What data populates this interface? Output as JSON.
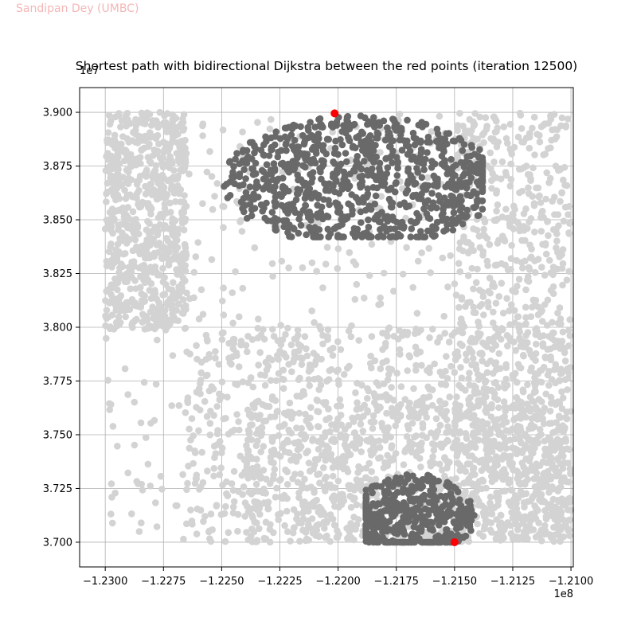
{
  "watermark": "Sandipan Dey (UMBC)",
  "chart_data": {
    "type": "scatter",
    "title": "Shortest path with bidirectional Dijkstra between the red points (iteration 12500)",
    "xlabel": "",
    "ylabel": "",
    "x_offset_label": "1e8",
    "y_offset_label": "1e7",
    "xlim": [
      -1.2311,
      -1.2099
    ],
    "ylim": [
      3.6885,
      3.9115
    ],
    "x_ticks": [
      -1.23,
      -1.2275,
      -1.225,
      -1.2225,
      -1.22,
      -1.2175,
      -1.215,
      -1.2125,
      -1.21
    ],
    "x_tick_labels": [
      "−1.2300",
      "−1.2275",
      "−1.2250",
      "−1.2225",
      "−1.2200",
      "−1.2175",
      "−1.2150",
      "−1.2125",
      "−1.2100"
    ],
    "y_ticks": [
      3.7,
      3.725,
      3.75,
      3.775,
      3.8,
      3.825,
      3.85,
      3.875,
      3.9
    ],
    "y_tick_labels": [
      "3.700",
      "3.725",
      "3.750",
      "3.775",
      "3.800",
      "3.825",
      "3.850",
      "3.875",
      "3.900"
    ],
    "grid": true,
    "colors": {
      "network": "#d3d3d3",
      "explored": "#696969",
      "endpoints": "#ff0000",
      "grid": "#b0b0b0"
    },
    "series": [
      {
        "role": "road-network-nodes",
        "color": "#d3d3d3",
        "regions": [
          {
            "x": [
              -1.23,
              -1.21
            ],
            "y": [
              3.7,
              3.9
            ],
            "density": "sparse"
          },
          {
            "x": [
              -1.23,
              -1.2265
            ],
            "y": [
              3.799,
              3.9
            ],
            "density": "dense"
          },
          {
            "x": [
              -1.2265,
              -1.21
            ],
            "y": [
              3.7,
              3.8
            ],
            "density": "dense"
          },
          {
            "x": [
              -1.224,
              -1.21
            ],
            "y": [
              3.7,
              3.765
            ],
            "density": "dense"
          },
          {
            "x": [
              -1.215,
              -1.21
            ],
            "y": [
              3.7,
              3.9
            ],
            "density": "dense"
          }
        ]
      },
      {
        "role": "explored-nodes-forward",
        "color": "#696969",
        "center": [
          -1.219,
          3.868
        ],
        "extent_x": [
          -1.2253,
          -1.2138
        ],
        "extent_y": [
          3.842,
          3.9
        ]
      },
      {
        "role": "explored-nodes-backward",
        "color": "#696969",
        "center": [
          -1.2168,
          3.712
        ],
        "extent_x": [
          -1.2188,
          -1.214
        ],
        "extent_y": [
          3.7,
          3.733
        ]
      },
      {
        "role": "endpoints",
        "color": "#ff0000",
        "points": [
          {
            "x": -1.22015,
            "y": 3.8995
          },
          {
            "x": -1.215,
            "y": 3.7
          }
        ]
      }
    ]
  }
}
